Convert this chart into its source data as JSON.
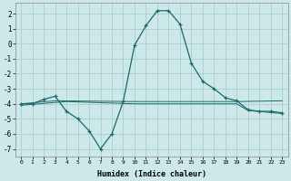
{
  "xlabel": "Humidex (Indice chaleur)",
  "ylabel": "",
  "xlim": [
    -0.5,
    23.5
  ],
  "ylim": [
    -7.5,
    2.7
  ],
  "yticks": [
    2,
    1,
    0,
    -1,
    -2,
    -3,
    -4,
    -5,
    -6,
    -7
  ],
  "xticks": [
    0,
    1,
    2,
    3,
    4,
    5,
    6,
    7,
    8,
    9,
    10,
    11,
    12,
    13,
    14,
    15,
    16,
    17,
    18,
    19,
    20,
    21,
    22,
    23
  ],
  "background_color": "#cce8e8",
  "grid_color": "#aacece",
  "line_color": "#1a6b6b",
  "line1_x": [
    0,
    1,
    2,
    3,
    4,
    5,
    6,
    7,
    8,
    9,
    10,
    11,
    12,
    13,
    14,
    15,
    16,
    17,
    18,
    19,
    20,
    21,
    22,
    23
  ],
  "line1_y": [
    -4.0,
    -4.0,
    -3.7,
    -3.5,
    -4.5,
    -5.0,
    -5.8,
    -7.0,
    -6.0,
    -3.85,
    -0.1,
    1.2,
    2.2,
    2.2,
    1.3,
    -1.3,
    -2.5,
    -3.0,
    -3.6,
    -3.8,
    -4.4,
    -4.5,
    -4.5,
    -4.6
  ],
  "line2_x": [
    0,
    3,
    10,
    18,
    19,
    23
  ],
  "line2_y": [
    -4.0,
    -3.8,
    -3.85,
    -3.85,
    -3.85,
    -3.8
  ],
  "line3_x": [
    0,
    4,
    10,
    19,
    20,
    23
  ],
  "line3_y": [
    -4.1,
    -3.85,
    -4.0,
    -4.0,
    -4.45,
    -4.65
  ]
}
